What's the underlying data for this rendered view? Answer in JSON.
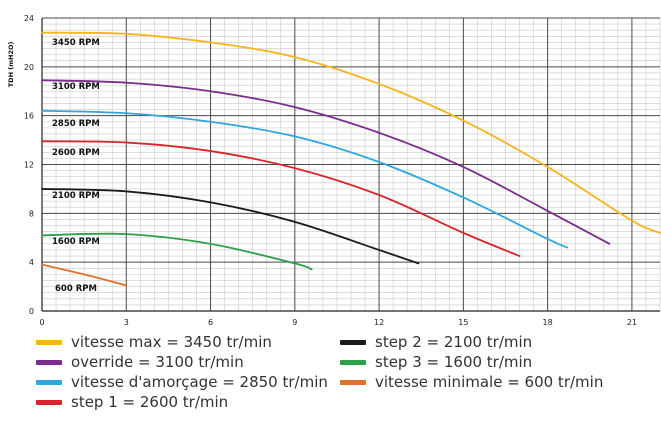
{
  "chart_data": {
    "type": "line",
    "xlabel": "",
    "ylabel": "TDH (mH2O)",
    "xlim": [
      0,
      22
    ],
    "ylim": [
      0,
      24
    ],
    "x_ticks": [
      "0",
      "3",
      "6",
      "9",
      "12",
      "15",
      "18",
      "21"
    ],
    "y_ticks": [
      "0",
      "4",
      "8",
      "12",
      "16",
      "20",
      "24"
    ],
    "grid": true,
    "series": [
      {
        "name": "vitesse max = 3450 tr/min",
        "rpm_label": "3450 RPM",
        "color": "#f7b51c",
        "x": [
          0,
          3,
          6,
          9,
          12,
          15,
          18,
          21,
          22
        ],
        "y": [
          22.8,
          22.7,
          22.0,
          20.8,
          18.6,
          15.6,
          11.8,
          7.4,
          6.4
        ]
      },
      {
        "name": "override = 3100 tr/min",
        "rpm_label": "3100 RPM",
        "color": "#7b2d8e",
        "x": [
          0,
          3,
          6,
          9,
          12,
          15,
          18,
          20.2
        ],
        "y": [
          18.9,
          18.7,
          18.0,
          16.7,
          14.6,
          11.8,
          8.2,
          5.5
        ]
      },
      {
        "name": "vitesse d'amorçage = 2850 tr/min",
        "rpm_label": "2850 RPM",
        "color": "#2fa7dd",
        "x": [
          0,
          3,
          6,
          9,
          12,
          15,
          18,
          18.7
        ],
        "y": [
          16.4,
          16.2,
          15.5,
          14.3,
          12.2,
          9.3,
          5.9,
          5.2
        ]
      },
      {
        "name": "step 1 = 2600 tr/min",
        "rpm_label": "2600 RPM",
        "color": "#d7262b",
        "x": [
          0,
          3,
          6,
          9,
          12,
          15,
          17.0
        ],
        "y": [
          13.9,
          13.8,
          13.1,
          11.7,
          9.5,
          6.4,
          4.5
        ]
      },
      {
        "name": "step 2 = 2100 tr/min",
        "rpm_label": "2100 RPM",
        "color": "#1a1a1a",
        "x": [
          0,
          3,
          6,
          9,
          12,
          13.4
        ],
        "y": [
          10.0,
          9.8,
          8.9,
          7.3,
          5.0,
          3.9
        ]
      },
      {
        "name": "step 3 = 1600 tr/min",
        "rpm_label": "1600 RPM",
        "color": "#2ea04a",
        "x": [
          0,
          3,
          6,
          9,
          9.6
        ],
        "y": [
          6.2,
          6.3,
          5.5,
          3.9,
          3.4
        ]
      },
      {
        "name": "vitesse minimale = 600 tr/min",
        "rpm_label": "600 RPM",
        "color": "#e0712b",
        "x": [
          0,
          1.5,
          3
        ],
        "y": [
          3.8,
          3.0,
          2.1
        ]
      }
    ]
  }
}
